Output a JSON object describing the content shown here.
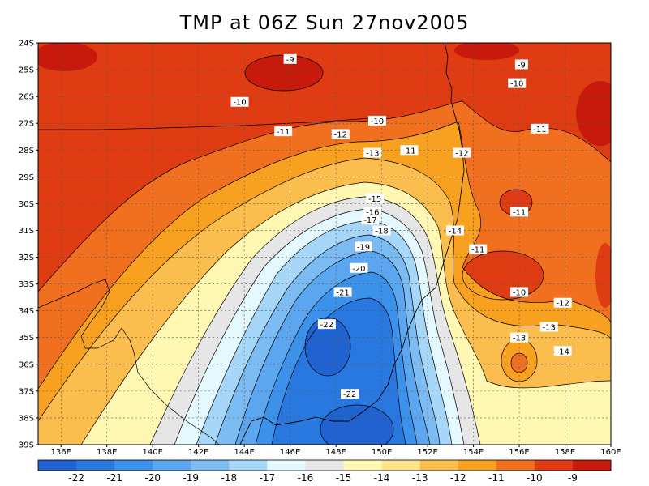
{
  "title": "TMP at 06Z Sun 27nov2005",
  "map": {
    "lat_ticks": [
      "24S",
      "25S",
      "26S",
      "27S",
      "28S",
      "29S",
      "30S",
      "31S",
      "32S",
      "33S",
      "34S",
      "35S",
      "36S",
      "37S",
      "38S",
      "39S"
    ],
    "lon_ticks": [
      "136E",
      "138E",
      "140E",
      "142E",
      "144E",
      "146E",
      "148E",
      "150E",
      "152E",
      "154E",
      "156E",
      "158E",
      "160E"
    ],
    "grid": true,
    "contour_labels": [
      {
        "text": "-9",
        "lon": 146.0,
        "lat": -24.6
      },
      {
        "text": "-9",
        "lon": 156.1,
        "lat": -24.8
      },
      {
        "text": "-10",
        "lon": 155.9,
        "lat": -25.5
      },
      {
        "text": "-10",
        "lon": 143.8,
        "lat": -26.2
      },
      {
        "text": "-10",
        "lon": 149.8,
        "lat": -26.9
      },
      {
        "text": "-11",
        "lon": 145.7,
        "lat": -27.3
      },
      {
        "text": "-11",
        "lon": 151.2,
        "lat": -28.0
      },
      {
        "text": "-11",
        "lon": 156.9,
        "lat": -27.2
      },
      {
        "text": "-12",
        "lon": 148.2,
        "lat": -27.4
      },
      {
        "text": "-12",
        "lon": 153.5,
        "lat": -28.1
      },
      {
        "text": "-13",
        "lon": 149.6,
        "lat": -28.1
      },
      {
        "text": "-15",
        "lon": 149.7,
        "lat": -29.8
      },
      {
        "text": "-16",
        "lon": 149.6,
        "lat": -30.3
      },
      {
        "text": "-17",
        "lon": 149.5,
        "lat": -30.6
      },
      {
        "text": "-18",
        "lon": 150.0,
        "lat": -31.0
      },
      {
        "text": "-19",
        "lon": 149.2,
        "lat": -31.6
      },
      {
        "text": "-20",
        "lon": 149.0,
        "lat": -32.4
      },
      {
        "text": "-21",
        "lon": 148.3,
        "lat": -33.3
      },
      {
        "text": "-22",
        "lon": 147.6,
        "lat": -34.5
      },
      {
        "text": "-22",
        "lon": 148.6,
        "lat": -37.1
      },
      {
        "text": "-14",
        "lon": 153.2,
        "lat": -31.0
      },
      {
        "text": "-11",
        "lon": 154.2,
        "lat": -31.7
      },
      {
        "text": "-11",
        "lon": 156.0,
        "lat": -30.3
      },
      {
        "text": "-10",
        "lon": 156.0,
        "lat": -33.3
      },
      {
        "text": "-12",
        "lon": 157.9,
        "lat": -33.7
      },
      {
        "text": "-13",
        "lon": 156.0,
        "lat": -35.0
      },
      {
        "text": "-13",
        "lon": 157.3,
        "lat": -34.6
      },
      {
        "text": "-14",
        "lon": 157.9,
        "lat": -35.5
      }
    ]
  },
  "colorbar": {
    "labels": [
      "-22",
      "-21",
      "-20",
      "-19",
      "-18",
      "-17",
      "-16",
      "-15",
      "-14",
      "-13",
      "-12",
      "-11",
      "-10",
      "-9"
    ],
    "colors": [
      "#1f62d0",
      "#2878e0",
      "#3c91ea",
      "#5ba6ee",
      "#7dbcf2",
      "#a6d6f8",
      "#e3f8ff",
      "#e6e6e6",
      "#fff7b2",
      "#fde28a",
      "#fbbd4e",
      "#f8a020",
      "#f07020",
      "#e03c14",
      "#c81a0c"
    ]
  }
}
